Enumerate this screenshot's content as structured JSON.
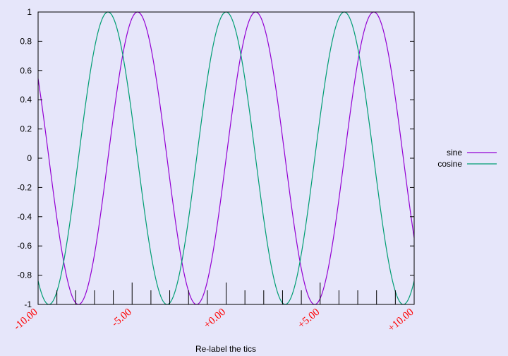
{
  "chart_data": {
    "type": "line",
    "title": "",
    "xlabel": "Re-label the tics",
    "ylabel": "",
    "xlim": [
      -10,
      10
    ],
    "ylim": [
      -1,
      1
    ],
    "grid": false,
    "legend_position": "right",
    "x_ticks": [
      {
        "value": -10,
        "label": "-10.00"
      },
      {
        "value": -5,
        "label": "-5.00"
      },
      {
        "value": 0,
        "label": "+0.00"
      },
      {
        "value": 5,
        "label": "+5.00"
      },
      {
        "value": 10,
        "label": "+10.00"
      }
    ],
    "x_minor_ticks": [
      -9,
      -8,
      -7,
      -6,
      -4,
      -3,
      -2,
      -1,
      1,
      2,
      3,
      4,
      6,
      7,
      8,
      9
    ],
    "y_ticks": [
      {
        "value": 1,
        "label": "1"
      },
      {
        "value": 0.8,
        "label": "0.8"
      },
      {
        "value": 0.6,
        "label": "0.6"
      },
      {
        "value": 0.4,
        "label": "0.4"
      },
      {
        "value": 0.2,
        "label": "0.2"
      },
      {
        "value": 0,
        "label": "0"
      },
      {
        "value": -0.2,
        "label": "-0.2"
      },
      {
        "value": -0.4,
        "label": "-0.4"
      },
      {
        "value": -0.6,
        "label": "-0.6"
      },
      {
        "value": -0.8,
        "label": "-0.8"
      },
      {
        "value": -1,
        "label": "-1"
      }
    ],
    "series": [
      {
        "name": "sine",
        "function": "sin(x)",
        "color": "#9400d3"
      },
      {
        "name": "cosine",
        "function": "cos(x)",
        "color": "#009e73"
      }
    ]
  }
}
